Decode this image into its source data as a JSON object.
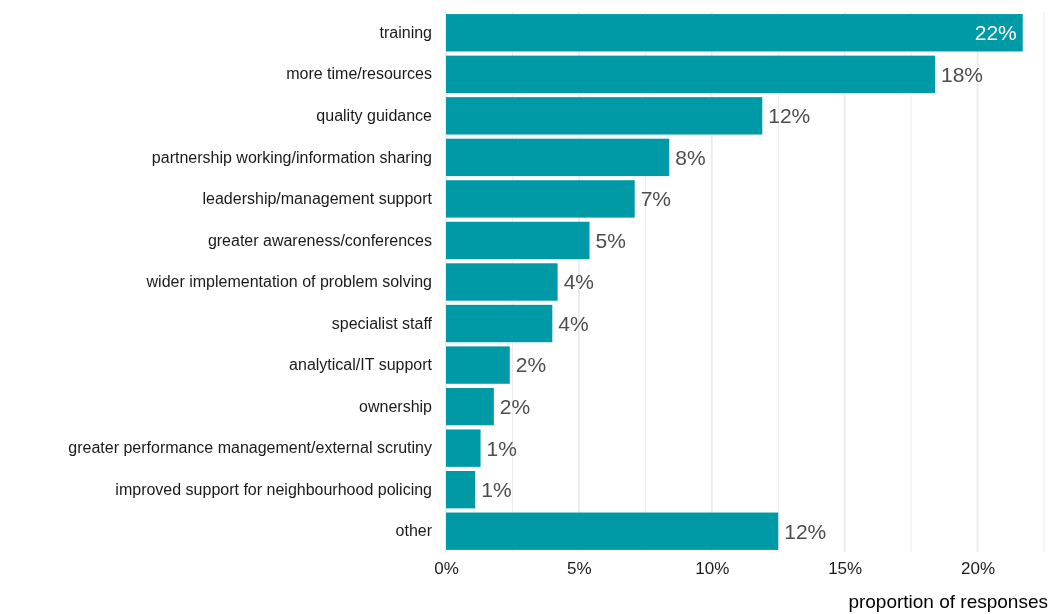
{
  "chart_data": {
    "type": "bar",
    "orientation": "horizontal",
    "xlabel": "proportion of responses",
    "categories": [
      "training",
      "more time/resources",
      "quality guidance",
      "partnership working/information sharing",
      "leadership/management support",
      "greater awareness/conferences",
      "wider implementation of problem solving",
      "specialist staff",
      "analytical/IT support",
      "ownership",
      "greater performance management/external scrutiny",
      "improved support for neighbourhood policing",
      "other"
    ],
    "values": [
      21.7,
      18.4,
      11.9,
      8.4,
      7.1,
      5.4,
      4.2,
      4.0,
      2.4,
      1.8,
      1.3,
      1.1,
      12.5
    ],
    "value_labels": [
      "22%",
      "18%",
      "12%",
      "8%",
      "7%",
      "5%",
      "4%",
      "4%",
      "2%",
      "2%",
      "1%",
      "1%",
      "12%"
    ],
    "color": "#009aa6",
    "xlim": [
      0,
      22.5
    ],
    "xticks": [
      {
        "value": 0,
        "label": "0%"
      },
      {
        "value": 2.5,
        "label": null
      },
      {
        "value": 5,
        "label": "5%"
      },
      {
        "value": 7.5,
        "label": null
      },
      {
        "value": 10,
        "label": "10%"
      },
      {
        "value": 12.5,
        "label": null
      },
      {
        "value": 15,
        "label": "15%"
      },
      {
        "value": 17.5,
        "label": null
      },
      {
        "value": 20,
        "label": "20%"
      },
      {
        "value": 22.5,
        "label": null
      }
    ],
    "grid": "x"
  }
}
